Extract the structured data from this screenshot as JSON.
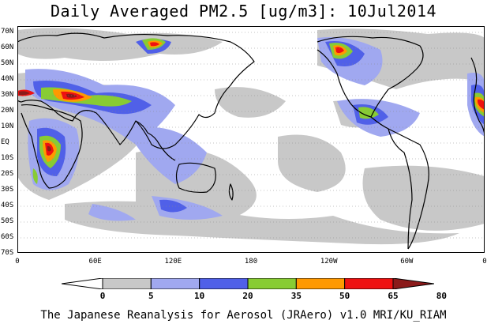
{
  "title": "Daily Averaged PM2.5 [ug/m3]: 10Jul2014",
  "footer": "The Japanese Reanalysis for Aerosol (JRAero) v1.0 MRI/KU_RIAM",
  "lat_labels": [
    "70N",
    "60N",
    "50N",
    "40N",
    "30N",
    "20N",
    "10N",
    "EQ",
    "10S",
    "20S",
    "30S",
    "40S",
    "50S",
    "60S",
    "70S"
  ],
  "lon_labels": [
    "0",
    "60E",
    "120E",
    "180",
    "120W",
    "60W",
    "0"
  ],
  "colorbar": {
    "labels": [
      "0",
      "5",
      "10",
      "20",
      "35",
      "50",
      "65",
      "80"
    ],
    "colors": [
      "#ffffff",
      "#c8c8c8",
      "#a0a8f0",
      "#5060e8",
      "#88cc33",
      "#ff9900",
      "#ee1111",
      "#8b1a1a"
    ]
  }
}
